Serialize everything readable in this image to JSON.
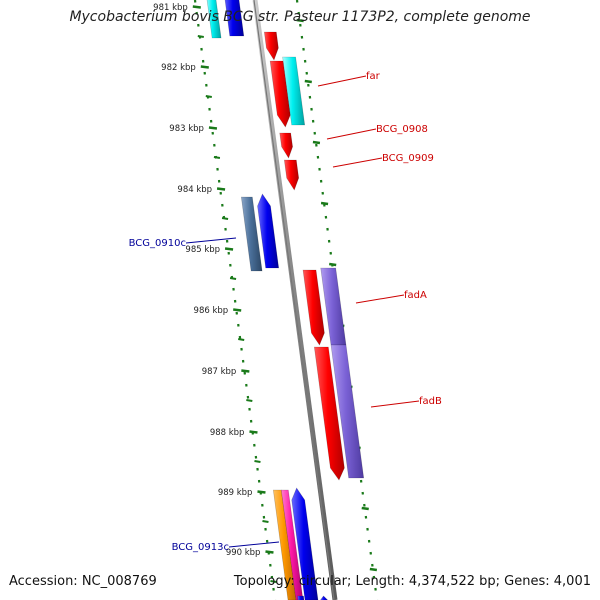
{
  "title": "Mycobacterium bovis BCG str. Pasteur 1173P2, complete genome",
  "footer": {
    "accession": "Accession: NC_008769",
    "stats": "Topology: circular; Length: 4,374,522 bp; Genes: 4,001"
  },
  "colors": {
    "backbone": "#888888",
    "ruler": "#1a7a1a",
    "forward_label": "#cc0000",
    "reverse_label": "#000099"
  },
  "ruler_labels": [
    "981 kbp",
    "982 kbp",
    "983 kbp",
    "984 kbp",
    "985 kbp",
    "986 kbp",
    "987 kbp",
    "988 kbp",
    "989 kbp",
    "990 kbp"
  ],
  "gene_labels": [
    {
      "text": "far",
      "strand": "forward"
    },
    {
      "text": "BCG_0908",
      "strand": "forward"
    },
    {
      "text": "BCG_0909",
      "strand": "forward"
    },
    {
      "text": "fadA",
      "strand": "forward"
    },
    {
      "text": "fadB",
      "strand": "forward"
    },
    {
      "text": "BCG_0910c",
      "strand": "reverse"
    },
    {
      "text": "BCG_0913c",
      "strand": "reverse"
    }
  ]
}
